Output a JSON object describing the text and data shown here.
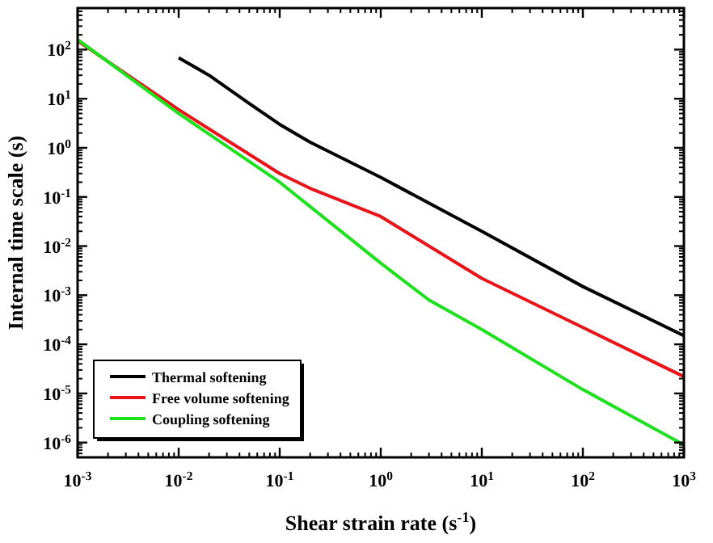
{
  "chart_data": {
    "type": "line",
    "xlabel": "Shear strain rate (s$^{-1}$)",
    "ylabel": "Internal time scale (s)",
    "log": "xy",
    "legend": "bottom left",
    "grid": false,
    "xlim": [
      0.001,
      1000
    ],
    "ylim": [
      5e-07,
      700
    ],
    "xticks": [
      {
        "value": 0.001,
        "label": "10$^{-3}$"
      },
      {
        "value": 0.01,
        "label": "10$^{-2}$"
      },
      {
        "value": 0.1,
        "label": "10$^{-1}$"
      },
      {
        "value": 1,
        "label": "10$^{0}$"
      },
      {
        "value": 10,
        "label": "10$^{1}$"
      },
      {
        "value": 100,
        "label": "10$^{2}$"
      },
      {
        "value": 1000,
        "label": "10$^{3}$"
      }
    ],
    "yticks": [
      {
        "value": 1e-06,
        "label": "10$^{-6}$"
      },
      {
        "value": 1e-05,
        "label": "10$^{-5}$"
      },
      {
        "value": 0.0001,
        "label": "10$^{-4}$"
      },
      {
        "value": 0.001,
        "label": "10$^{-3}$"
      },
      {
        "value": 0.01,
        "label": "10$^{-2}$"
      },
      {
        "value": 0.1,
        "label": "10$^{-1}$"
      },
      {
        "value": 1,
        "label": "10$^{0}$"
      },
      {
        "value": 10,
        "label": "10$^{1}$"
      },
      {
        "value": 100,
        "label": "10$^{2}$"
      }
    ],
    "series": [
      {
        "name": "Thermal softening",
        "color": "#000000",
        "x": [
          0.01,
          0.02,
          0.05,
          0.1,
          0.2,
          1,
          10,
          100,
          1000
        ],
        "values": [
          68,
          30,
          8,
          3,
          1.3,
          0.25,
          0.02,
          0.0015,
          0.00015
        ]
      },
      {
        "name": "Free volume softening",
        "color": "#e8141a",
        "x": [
          0.001,
          0.01,
          0.1,
          0.2,
          1,
          10,
          100,
          1000
        ],
        "values": [
          150,
          6,
          0.3,
          0.15,
          0.04,
          0.0022,
          0.00022,
          2.2e-05
        ]
      },
      {
        "name": "Coupling softening",
        "color": "#1ee01e",
        "x": [
          0.001,
          0.01,
          0.1,
          1,
          3,
          10,
          100,
          1000
        ],
        "values": [
          160,
          5,
          0.2,
          0.0045,
          0.0008,
          0.0002,
          1.2e-05,
          9e-07
        ]
      }
    ]
  }
}
